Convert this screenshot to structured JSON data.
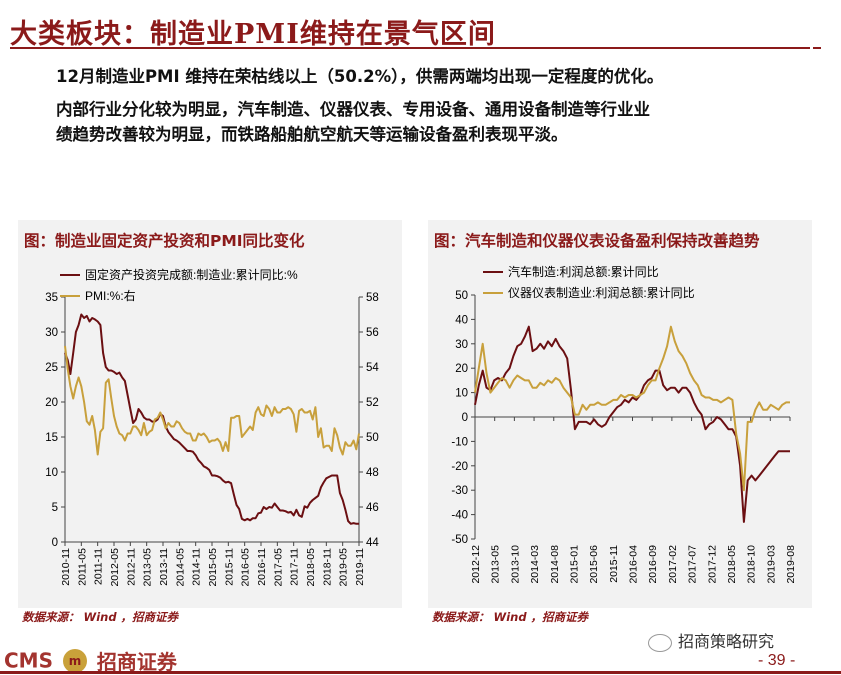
{
  "header": {
    "title": "大类板块：制造业PMI维持在景气区间"
  },
  "text": {
    "line1": "12月制造业PMI 维持在荣枯线以上（50.2%），供需两端均出现一定程度的优化。",
    "line2": "内部行业分化较为明显，汽车制造、仪器仪表、专用设备、通用设备制造等行业业",
    "line3": "绩趋势改善较为明显，而铁路船舶航空航天等运输设备盈利表现平淡。"
  },
  "footer": {
    "source_left": "数据来源： Wind ，招商证券",
    "source_right": "数据来源： Wind ，招商证券",
    "logo_text": "CMS",
    "logo_mark": "m",
    "logo_name": "招商证券",
    "wechat": "招商策略研究",
    "page": "- 39 -"
  },
  "colors": {
    "accent": "#8b1a1a",
    "series_dark": "#6b0f12",
    "series_gold": "#c8a03c",
    "panel_bg": "#f2f2f2"
  },
  "chart_data": [
    {
      "type": "line",
      "title": "图：制造业固定资产投资和PMI同比变化",
      "x_ticks": [
        "2010-11",
        "2011-05",
        "2011-11",
        "2012-05",
        "2012-11",
        "2013-05",
        "2013-11",
        "2014-05",
        "2014-11",
        "2015-05",
        "2015-11",
        "2016-05",
        "2016-11",
        "2017-05",
        "2017-11",
        "2018-05",
        "2018-11",
        "2019-05",
        "2019-11"
      ],
      "ylim_left": [
        0,
        35
      ],
      "yticks_left": [
        0,
        5,
        10,
        15,
        20,
        25,
        30,
        35
      ],
      "ylim_right": [
        44,
        58
      ],
      "yticks_right": [
        44,
        46,
        48,
        50,
        52,
        54,
        56,
        58
      ],
      "legend": "top-left",
      "grid": false,
      "series": [
        {
          "name": "固定资产投资完成额:制造业:累计同比:%",
          "axis": "left",
          "x": [
            0,
            1,
            2,
            3,
            4,
            5,
            6,
            7,
            8,
            9,
            10,
            11,
            12,
            13,
            14,
            15,
            16,
            17,
            18,
            19,
            20,
            21,
            22,
            23,
            24,
            25,
            26,
            27,
            28,
            29,
            30,
            31,
            32,
            33,
            34,
            35,
            36,
            37,
            38,
            39,
            40,
            41,
            42,
            43,
            44,
            45,
            46,
            47,
            48,
            49,
            50,
            51,
            52,
            53,
            54,
            55,
            56,
            57,
            58,
            59,
            60,
            61,
            62,
            63,
            64,
            65,
            66,
            67,
            68,
            69,
            70,
            71,
            72,
            73,
            74,
            75,
            76,
            77,
            78,
            79,
            80,
            81,
            82,
            83,
            84,
            85,
            86,
            87,
            88,
            89,
            90,
            91,
            92,
            93,
            94,
            95,
            96,
            97,
            98,
            99,
            100,
            101,
            102,
            103,
            104,
            105,
            106,
            107,
            108
          ],
          "values": [
            27,
            26,
            24,
            27,
            30,
            31,
            32.5,
            32,
            32.3,
            31.5,
            32,
            31.8,
            31.5,
            31,
            27,
            25,
            24.5,
            24.5,
            24.3,
            24,
            24.2,
            23.5,
            23,
            21,
            19,
            17,
            17.5,
            19,
            18.5,
            17.8,
            17.5,
            17.5,
            17.2,
            17.2,
            17.5,
            18.3,
            18,
            16.5,
            15.7,
            15.2,
            14.7,
            14.5,
            14.2,
            13.8,
            13.4,
            13,
            13,
            12.9,
            12.4,
            11.7,
            11.3,
            10.8,
            10.6,
            10.3,
            9.5,
            9.5,
            9.4,
            9.2,
            8.8,
            8.5,
            8.6,
            8.4,
            6.8,
            5.3,
            4.7,
            3.3,
            3.1,
            3.3,
            3.1,
            3.4,
            3.4,
            4.1,
            4.2,
            5.0,
            4.7,
            5.0,
            4.9,
            5.5,
            5.0,
            4.5,
            4.5,
            4.4,
            4.2,
            4.3,
            3.8,
            4.6,
            3.8,
            3.6,
            5.1,
            4.9,
            5.6,
            6.0,
            6.3,
            6.6,
            7.8,
            8.5,
            9.1,
            9.3,
            9.5,
            9.5,
            9.5,
            7.0,
            6.0,
            4.6,
            3.0,
            2.6,
            2.7,
            2.6,
            2.6
          ]
        },
        {
          "name": "PMI:%:右",
          "axis": "right",
          "x": [
            0,
            1,
            2,
            3,
            4,
            5,
            6,
            7,
            8,
            9,
            10,
            11,
            12,
            13,
            14,
            15,
            16,
            17,
            18,
            19,
            20,
            21,
            22,
            23,
            24,
            25,
            26,
            27,
            28,
            29,
            30,
            31,
            32,
            33,
            34,
            35,
            36,
            37,
            38,
            39,
            40,
            41,
            42,
            43,
            44,
            45,
            46,
            47,
            48,
            49,
            50,
            51,
            52,
            53,
            54,
            55,
            56,
            57,
            58,
            59,
            60,
            61,
            62,
            63,
            64,
            65,
            66,
            67,
            68,
            69,
            70,
            71,
            72,
            73,
            74,
            75,
            76,
            77,
            78,
            79,
            80,
            81,
            82,
            83,
            84,
            85,
            86,
            87,
            88,
            89,
            90,
            91,
            92,
            93,
            94,
            95,
            96,
            97,
            98,
            99,
            100,
            101,
            102,
            103,
            104,
            105,
            106,
            107,
            108
          ],
          "values": [
            55.2,
            53.9,
            52.9,
            52.2,
            52.9,
            53.4,
            52.9,
            52.0,
            50.9,
            50.7,
            51.2,
            50.4,
            49.0,
            50.3,
            50.5,
            53.1,
            53.3,
            52.2,
            51.2,
            50.6,
            50.2,
            50.1,
            49.8,
            50.2,
            50.2,
            50.6,
            50.6,
            50.4,
            50.1,
            50.8,
            50.1,
            50.3,
            50.4,
            51.0,
            51.1,
            51.4,
            51.0,
            50.5,
            50.8,
            50.6,
            50.6,
            50.9,
            50.8,
            50.5,
            50.3,
            50.2,
            50.2,
            49.8,
            49.8,
            50.2,
            50.1,
            50.2,
            50.0,
            49.7,
            49.8,
            49.8,
            49.9,
            49.7,
            49.2,
            49.7,
            49.2,
            51.1,
            51.1,
            51.2,
            51.2,
            50.0,
            50.2,
            50.4,
            50.6,
            50.4,
            51.4,
            51.7,
            51.3,
            51.2,
            51.8,
            51.6,
            51.2,
            51.7,
            51.4,
            51.4,
            51.6,
            51.6,
            51.7,
            51.6,
            51.3,
            50.3,
            51.5,
            51.6,
            51.4,
            51.4,
            51.5,
            51.0,
            51.7,
            50.0,
            50.5,
            49.4,
            49.5,
            49.5,
            49.2,
            50.5,
            50.1,
            49.4,
            49.0,
            49.7,
            49.5,
            49.5,
            49.8,
            49.3,
            50.2
          ]
        }
      ]
    },
    {
      "type": "line",
      "title": "图：汽车制造和仪器仪表设备盈利保持改善趋势",
      "x_ticks": [
        "2012-12",
        "2013-05",
        "2013-10",
        "2014-03",
        "2014-08",
        "2015-01",
        "2015-06",
        "2015-11",
        "2016-04",
        "2016-09",
        "2017-02",
        "2017-07",
        "2017-12",
        "2018-05",
        "2018-10",
        "2019-03",
        "2019-08"
      ],
      "ylim": [
        -50,
        50
      ],
      "yticks": [
        -50,
        -40,
        -30,
        -20,
        -10,
        0,
        10,
        20,
        30,
        40,
        50
      ],
      "legend": "top-left",
      "grid": false,
      "series": [
        {
          "name": "汽车制造:利润总额:累计同比",
          "x": [
            0,
            1,
            2,
            3,
            4,
            5,
            6,
            7,
            8,
            9,
            10,
            11,
            12,
            13,
            14,
            15,
            16,
            17,
            18,
            19,
            20,
            21,
            22,
            23,
            24,
            25,
            26,
            27,
            28,
            29,
            30,
            31,
            32,
            33,
            34,
            35,
            36,
            37,
            38,
            39,
            40,
            41,
            42,
            43,
            44,
            45,
            46,
            47,
            48,
            49,
            50,
            51,
            52,
            53,
            54,
            55,
            56,
            57,
            58,
            59,
            60,
            61,
            62,
            63,
            64,
            65,
            66,
            67,
            68,
            69,
            70,
            71,
            72,
            73,
            74,
            75,
            76,
            77,
            78,
            79,
            80,
            81,
            82
          ],
          "values": [
            5,
            13,
            19,
            12,
            11,
            15,
            16,
            15,
            18,
            20,
            25,
            29,
            30,
            33,
            37,
            27,
            28,
            30,
            28,
            31,
            29,
            32,
            29,
            27,
            24,
            11,
            -5,
            -2,
            -2,
            -2,
            -3,
            -1,
            -3,
            -4,
            -3,
            0,
            2,
            4,
            5,
            7,
            6,
            8,
            7,
            9,
            13,
            15,
            16,
            19,
            19,
            13,
            11,
            12,
            12,
            10,
            12,
            12,
            10,
            6,
            3,
            1,
            -5,
            -3,
            -2,
            0,
            -1,
            -3,
            -5,
            -5,
            -8,
            -20,
            -43,
            -26,
            -24,
            -26,
            -24,
            -22,
            -20,
            -18,
            -16,
            -14,
            -14,
            -14,
            -14
          ]
        },
        {
          "name": "仪器仪表制造业:利润总额:累计同比",
          "x": [
            0,
            1,
            2,
            3,
            4,
            5,
            6,
            7,
            8,
            9,
            10,
            11,
            12,
            13,
            14,
            15,
            16,
            17,
            18,
            19,
            20,
            21,
            22,
            23,
            24,
            25,
            26,
            27,
            28,
            29,
            30,
            31,
            32,
            33,
            34,
            35,
            36,
            37,
            38,
            39,
            40,
            41,
            42,
            43,
            44,
            45,
            46,
            47,
            48,
            49,
            50,
            51,
            52,
            53,
            54,
            55,
            56,
            57,
            58,
            59,
            60,
            61,
            62,
            63,
            64,
            65,
            66,
            67,
            68,
            69,
            70,
            71,
            72,
            73,
            74,
            75,
            76,
            77,
            78,
            79,
            80,
            81,
            82
          ],
          "values": [
            10,
            20,
            30,
            18,
            10,
            12,
            14,
            16,
            15,
            12,
            15,
            17,
            16,
            15,
            15,
            12,
            12,
            14,
            13,
            15,
            14,
            16,
            15,
            12,
            10,
            8,
            1,
            1,
            5,
            3,
            5,
            5,
            6,
            5,
            5,
            6,
            7,
            7,
            9,
            8,
            9,
            9,
            8,
            9,
            10,
            13,
            15,
            15,
            20,
            24,
            29,
            37,
            31,
            27,
            25,
            22,
            18,
            15,
            13,
            9,
            8,
            8,
            7,
            7,
            6,
            7,
            8,
            7,
            -7,
            -15,
            -30,
            -2,
            -2,
            3,
            6,
            3,
            3,
            5,
            4,
            3,
            5,
            6,
            6
          ]
        }
      ]
    }
  ]
}
